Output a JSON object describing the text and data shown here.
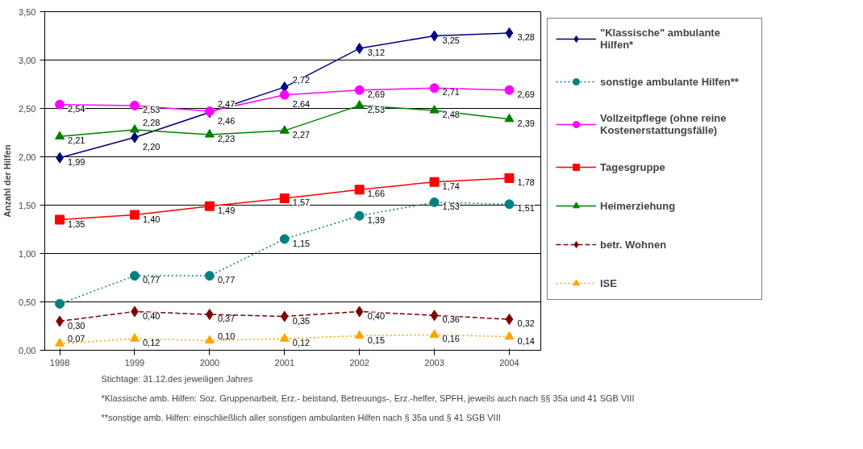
{
  "chart_data": {
    "type": "line",
    "ylabel": "Anzahl der Hilfen",
    "x": [
      1998,
      1999,
      2000,
      2001,
      2002,
      2003,
      2004
    ],
    "xlim": [
      1997.8,
      2004.42
    ],
    "xticks": [
      {
        "value": 1998,
        "label": "1998"
      },
      {
        "value": 1999,
        "label": "1999"
      },
      {
        "value": 2000,
        "label": "2000"
      },
      {
        "value": 2001,
        "label": "2001"
      },
      {
        "value": 2002,
        "label": "2002"
      },
      {
        "value": 2003,
        "label": "2003"
      },
      {
        "value": 2004,
        "label": "2004"
      }
    ],
    "ylim": [
      0,
      3.5
    ],
    "yticks": [
      {
        "value": 0,
        "label": "0,00"
      },
      {
        "value": 0.5,
        "label": "0,50"
      },
      {
        "value": 1,
        "label": "1,00"
      },
      {
        "value": 1.5,
        "label": "1,50"
      },
      {
        "value": 2,
        "label": "2,00"
      },
      {
        "value": 2.5,
        "label": "2,50"
      },
      {
        "value": 3,
        "label": "3,00"
      },
      {
        "value": 3.5,
        "label": "3,50"
      }
    ],
    "grid": "y",
    "legend": "right",
    "series": [
      {
        "name": "\"Klassische\" ambulante Hilfen*",
        "color": "#000080",
        "marker": "diamond",
        "line_style": "solid",
        "values": [
          1.99,
          2.2,
          2.46,
          2.72,
          3.12,
          3.25,
          3.28
        ],
        "value_labels": [
          "1,99",
          "2,20",
          "2,46",
          "2,72",
          "3,12",
          "3,25",
          "3,28"
        ]
      },
      {
        "name": "sonstige ambulante Hilfen**",
        "color": "#008080",
        "marker": "circle",
        "line_style": "dotted",
        "values": [
          0.48,
          0.77,
          0.77,
          1.15,
          1.39,
          1.53,
          1.51
        ],
        "value_labels": [
          null,
          "0,77",
          "0,77",
          "1,15",
          "1,39",
          "1,53",
          "1,51"
        ]
      },
      {
        "name": "Vollzeitpflege (ohne reine Kostenerstattungsfälle)",
        "color": "#ff00ff",
        "marker": "circle",
        "line_style": "solid",
        "values": [
          2.54,
          2.53,
          2.47,
          2.64,
          2.69,
          2.71,
          2.69
        ],
        "value_labels": [
          "2,54",
          "2,53",
          "2,47",
          "2,64",
          "2,69",
          "2,71",
          "2,69"
        ]
      },
      {
        "name": "Tagesgruppe",
        "color": "#ff0000",
        "marker": "square",
        "line_style": "solid",
        "values": [
          1.35,
          1.4,
          1.49,
          1.57,
          1.66,
          1.74,
          1.78
        ],
        "value_labels": [
          "1,35",
          "1,40",
          "1,49",
          "1,57",
          "1,66",
          "1,74",
          "1,78"
        ]
      },
      {
        "name": "Heimerziehung",
        "color": "#008000",
        "marker": "triangle",
        "line_style": "solid",
        "values": [
          2.21,
          2.28,
          2.23,
          2.27,
          2.53,
          2.48,
          2.39
        ],
        "value_labels": [
          "2,21",
          "2,28",
          "2,23",
          "2,27",
          "2,53",
          "2,48",
          "2,39"
        ]
      },
      {
        "name": "betr. Wohnen",
        "color": "#800000",
        "marker": "diamond",
        "line_style": "dashed",
        "values": [
          0.3,
          0.4,
          0.37,
          0.35,
          0.4,
          0.36,
          0.32
        ],
        "value_labels": [
          "0,30",
          "0,40",
          "0,37",
          "0,35",
          "0,40",
          "0,36",
          "0,32"
        ]
      },
      {
        "name": "ISE",
        "color": "#ffa500",
        "marker": "triangle",
        "line_style": "dotted",
        "values": [
          0.07,
          0.12,
          0.1,
          0.12,
          0.15,
          0.16,
          0.14
        ],
        "value_labels": [
          "0,07",
          "0,12",
          "0,10",
          "0,12",
          "0,15",
          "0,16",
          "0,14"
        ]
      }
    ],
    "annotations": [
      "Stichtage: 31.12.des jeweiligen Jahres",
      "*Klassische amb. Hilfen: Soz. Gruppenarbeit, Erz.- beistand, Betreuungs-, Erz.-helfer, SPFH, jeweils auch nach §§ 35a und 41 SGB VIII",
      "**sonstige amb. Hilfen: einschließlich aller sonstigen ambulanten Hilfen nach § 35a und § 41 SGB VIII"
    ]
  }
}
